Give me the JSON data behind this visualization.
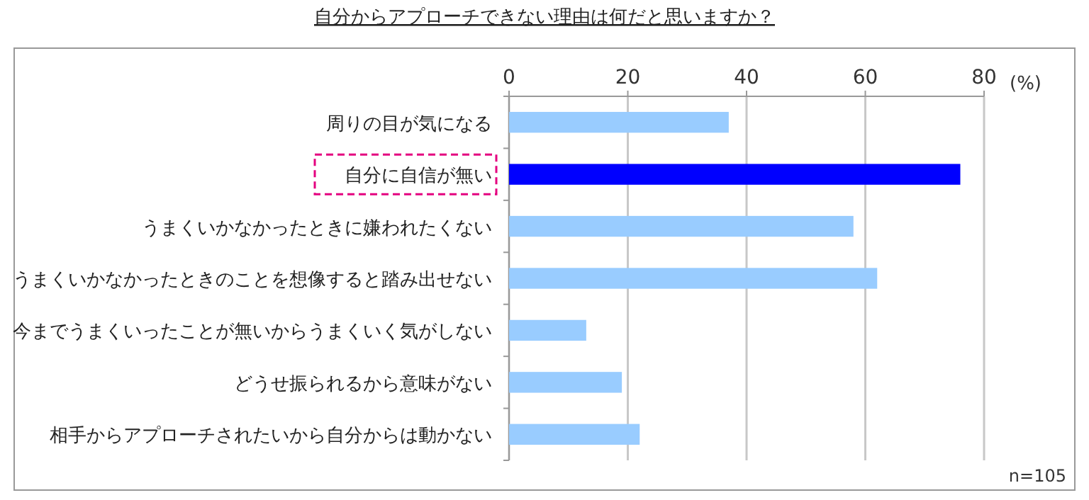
{
  "chart_data": {
    "type": "bar",
    "orientation": "horizontal",
    "title": "自分からアプローチできない理由は何だと思いますか？",
    "categories": [
      "周りの目が気になる",
      "自分に自信が無い",
      "うまくいかなかったときに嫌われたくない",
      "うまくいかなかったときのことを想像すると踏み出せない",
      "今までうまくいったことが無いからうまくいく気がしない",
      "どうせ振られるから意味がない",
      "相手からアプローチされたいから自分からは動かない"
    ],
    "values": [
      37,
      76,
      58,
      62,
      13,
      19,
      22
    ],
    "colors": [
      "#99ccff",
      "#0000ff",
      "#99ccff",
      "#99ccff",
      "#99ccff",
      "#99ccff",
      "#99ccff"
    ],
    "xlim": [
      0,
      80
    ],
    "xticks": [
      0,
      20,
      40,
      60,
      80
    ],
    "grid": "x",
    "annotations": [
      "(%)",
      "n=105"
    ]
  }
}
